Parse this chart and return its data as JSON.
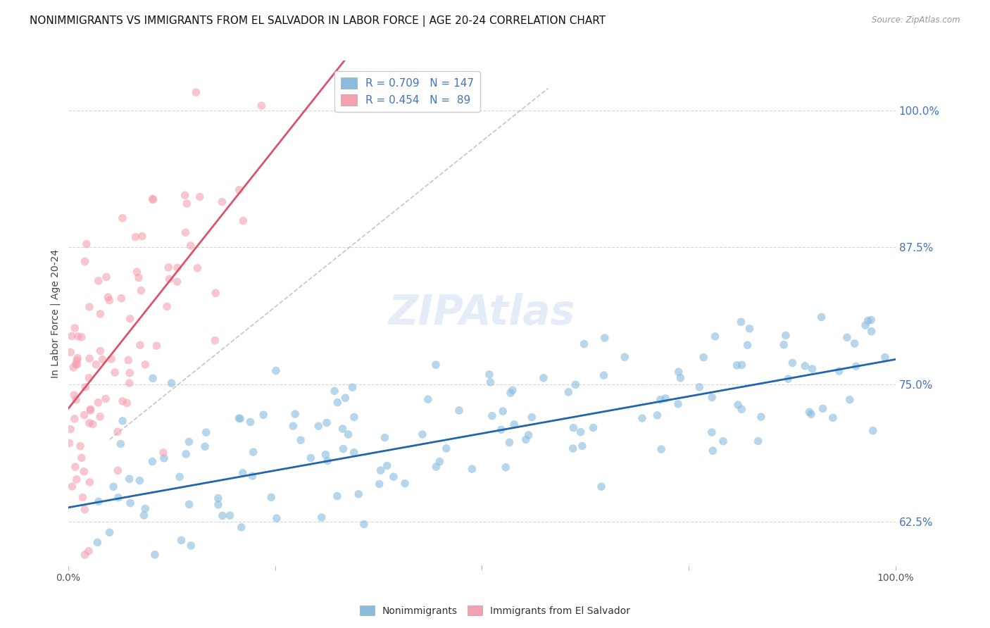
{
  "title": "NONIMMIGRANTS VS IMMIGRANTS FROM EL SALVADOR IN LABOR FORCE | AGE 20-24 CORRELATION CHART",
  "source": "Source: ZipAtlas.com",
  "ylabel": "In Labor Force | Age 20-24",
  "xlim": [
    0.0,
    1.0
  ],
  "ylim": [
    0.585,
    1.045
  ],
  "yticks_right": [
    0.625,
    0.75,
    0.875,
    1.0
  ],
  "ytick_right_labels": [
    "62.5%",
    "75.0%",
    "87.5%",
    "100.0%"
  ],
  "blue_R": 0.709,
  "blue_N": 147,
  "pink_R": 0.454,
  "pink_N": 89,
  "blue_color": "#89bcde",
  "pink_color": "#f4a0b0",
  "blue_line_color": "#2166ac",
  "pink_line_color": "#d9546a",
  "watermark": "ZIPAtlas",
  "legend_blue_label": "Nonimmigrants",
  "legend_pink_label": "Immigrants from El Salvador",
  "title_fontsize": 11,
  "axis_label_fontsize": 10,
  "tick_fontsize": 10,
  "background_color": "#ffffff",
  "grid_color": "#cccccc",
  "blue_scatter_seed": 42,
  "pink_scatter_seed": 99,
  "blue_intercept": 0.638,
  "blue_slope": 0.135,
  "pink_intercept": 0.728,
  "pink_slope": 0.95
}
